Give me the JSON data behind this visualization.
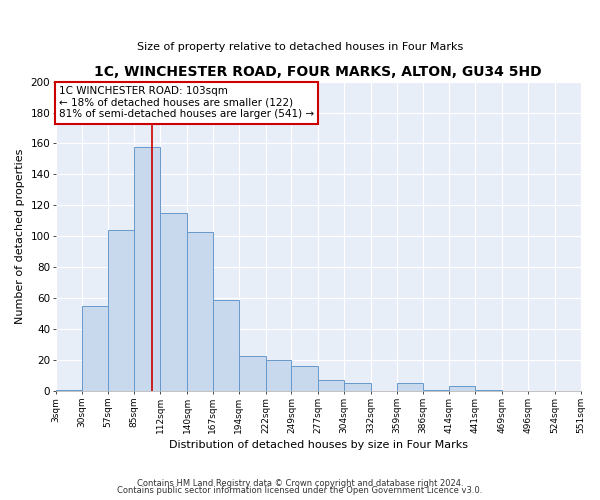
{
  "title": "1C, WINCHESTER ROAD, FOUR MARKS, ALTON, GU34 5HD",
  "subtitle": "Size of property relative to detached houses in Four Marks",
  "xlabel": "Distribution of detached houses by size in Four Marks",
  "ylabel": "Number of detached properties",
  "bar_color": "#c8d9ee",
  "bar_edge_color": "#6699cc",
  "background_color": "#e8eef8",
  "fig_background": "#ffffff",
  "annotation_title": "1C WINCHESTER ROAD: 103sqm",
  "annotation_line1": "← 18% of detached houses are smaller (122)",
  "annotation_line2": "81% of semi-detached houses are larger (541) →",
  "property_value": 103,
  "red_line_x": 103,
  "bin_edges": [
    3,
    30,
    57,
    85,
    112,
    140,
    167,
    194,
    222,
    249,
    277,
    304,
    332,
    359,
    386,
    414,
    441,
    469,
    496,
    524,
    551
  ],
  "bar_heights": [
    1,
    55,
    104,
    158,
    115,
    103,
    59,
    23,
    20,
    16,
    7,
    5,
    0,
    5,
    1,
    3,
    1,
    0,
    0,
    0
  ],
  "ylim": [
    0,
    200
  ],
  "yticks": [
    0,
    20,
    40,
    60,
    80,
    100,
    120,
    140,
    160,
    180,
    200
  ],
  "footer_line1": "Contains HM Land Registry data © Crown copyright and database right 2024.",
  "footer_line2": "Contains public sector information licensed under the Open Government Licence v3.0."
}
